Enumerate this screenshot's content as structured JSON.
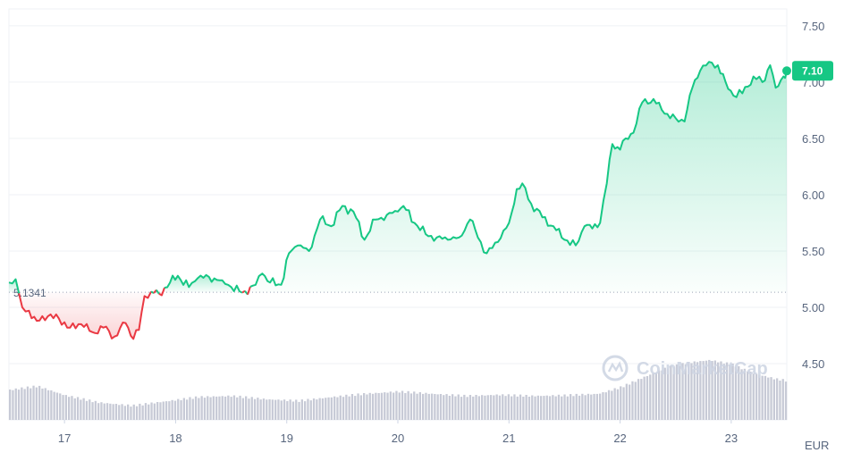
{
  "chart_data": {
    "type": "area",
    "currency_label": "EUR",
    "x_ticks": [
      "17",
      "18",
      "19",
      "20",
      "21",
      "22",
      "23"
    ],
    "y_ticks": [
      "7.50",
      "7.00",
      "6.50",
      "6.00",
      "5.50",
      "5.00",
      "4.50"
    ],
    "ylim": [
      4.0,
      7.65
    ],
    "reference_value": 5.1341,
    "reference_label": "5.1341",
    "current_price_label": "7.10",
    "grid": true,
    "colors": {
      "up": "#16c784",
      "down": "#ea3943",
      "volume": "#c7cad6",
      "badge": "#16c784"
    },
    "watermark": "CoinMarketCap",
    "price_points": [
      [
        16.5,
        5.22
      ],
      [
        16.56,
        5.25
      ],
      [
        16.62,
        5.0
      ],
      [
        16.68,
        4.97
      ],
      [
        16.75,
        4.88
      ],
      [
        16.85,
        4.92
      ],
      [
        16.95,
        4.9
      ],
      [
        17.05,
        4.82
      ],
      [
        17.15,
        4.85
      ],
      [
        17.25,
        4.78
      ],
      [
        17.35,
        4.82
      ],
      [
        17.45,
        4.74
      ],
      [
        17.55,
        4.86
      ],
      [
        17.62,
        4.72
      ],
      [
        17.67,
        4.8
      ],
      [
        17.72,
        5.1
      ],
      [
        17.78,
        5.14
      ],
      [
        17.85,
        5.12
      ],
      [
        17.95,
        5.22
      ],
      [
        18.02,
        5.28
      ],
      [
        18.12,
        5.18
      ],
      [
        18.2,
        5.26
      ],
      [
        18.3,
        5.27
      ],
      [
        18.42,
        5.24
      ],
      [
        18.5,
        5.18
      ],
      [
        18.6,
        5.13
      ],
      [
        18.72,
        5.2
      ],
      [
        18.78,
        5.3
      ],
      [
        18.85,
        5.22
      ],
      [
        18.95,
        5.2
      ],
      [
        19.02,
        5.48
      ],
      [
        19.1,
        5.55
      ],
      [
        19.2,
        5.5
      ],
      [
        19.3,
        5.78
      ],
      [
        19.4,
        5.72
      ],
      [
        19.5,
        5.9
      ],
      [
        19.6,
        5.85
      ],
      [
        19.7,
        5.6
      ],
      [
        19.8,
        5.78
      ],
      [
        19.9,
        5.82
      ],
      [
        20.0,
        5.85
      ],
      [
        20.05,
        5.9
      ],
      [
        20.15,
        5.75
      ],
      [
        20.25,
        5.65
      ],
      [
        20.35,
        5.62
      ],
      [
        20.45,
        5.6
      ],
      [
        20.55,
        5.62
      ],
      [
        20.65,
        5.78
      ],
      [
        20.72,
        5.62
      ],
      [
        20.8,
        5.48
      ],
      [
        20.9,
        5.58
      ],
      [
        21.0,
        5.75
      ],
      [
        21.07,
        6.05
      ],
      [
        21.12,
        6.1
      ],
      [
        21.2,
        5.92
      ],
      [
        21.3,
        5.8
      ],
      [
        21.4,
        5.72
      ],
      [
        21.5,
        5.6
      ],
      [
        21.6,
        5.55
      ],
      [
        21.68,
        5.72
      ],
      [
        21.75,
        5.7
      ],
      [
        21.82,
        5.75
      ],
      [
        21.88,
        6.1
      ],
      [
        21.93,
        6.45
      ],
      [
        22.0,
        6.4
      ],
      [
        22.05,
        6.5
      ],
      [
        22.12,
        6.55
      ],
      [
        22.2,
        6.82
      ],
      [
        22.3,
        6.85
      ],
      [
        22.4,
        6.72
      ],
      [
        22.5,
        6.68
      ],
      [
        22.58,
        6.65
      ],
      [
        22.65,
        6.95
      ],
      [
        22.72,
        7.1
      ],
      [
        22.8,
        7.18
      ],
      [
        22.88,
        7.15
      ],
      [
        22.95,
        7.0
      ],
      [
        23.02,
        6.88
      ],
      [
        23.1,
        6.9
      ],
      [
        23.2,
        7.05
      ],
      [
        23.28,
        7.0
      ],
      [
        23.35,
        7.15
      ],
      [
        23.4,
        6.95
      ],
      [
        23.47,
        7.05
      ],
      [
        23.5,
        7.1
      ]
    ],
    "volume_levels": [
      [
        16.5,
        0.55
      ],
      [
        16.75,
        0.62
      ],
      [
        17.0,
        0.45
      ],
      [
        17.3,
        0.32
      ],
      [
        17.6,
        0.26
      ],
      [
        17.9,
        0.34
      ],
      [
        18.2,
        0.42
      ],
      [
        18.5,
        0.44
      ],
      [
        18.8,
        0.38
      ],
      [
        19.1,
        0.35
      ],
      [
        19.4,
        0.42
      ],
      [
        19.7,
        0.48
      ],
      [
        20.0,
        0.52
      ],
      [
        20.3,
        0.48
      ],
      [
        20.6,
        0.44
      ],
      [
        20.9,
        0.46
      ],
      [
        21.2,
        0.44
      ],
      [
        21.5,
        0.45
      ],
      [
        21.8,
        0.48
      ],
      [
        22.0,
        0.6
      ],
      [
        22.2,
        0.78
      ],
      [
        22.4,
        0.95
      ],
      [
        22.6,
        1.05
      ],
      [
        22.8,
        1.1
      ],
      [
        23.0,
        1.02
      ],
      [
        23.2,
        0.85
      ],
      [
        23.4,
        0.75
      ],
      [
        23.5,
        0.72
      ]
    ]
  }
}
